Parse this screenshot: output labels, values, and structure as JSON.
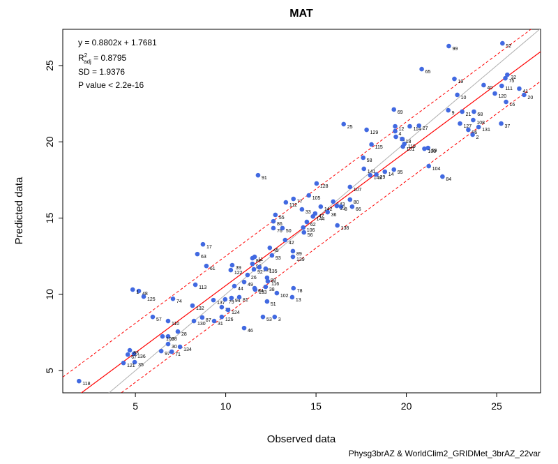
{
  "chart_data": {
    "type": "scatter",
    "title": "MAT",
    "x_label": "Observed data",
    "y_label": "Predicted data",
    "footnote": "Physg3brAZ & WorldClim2_GRIDMet_3brAZ_22var",
    "annotations": [
      "y = 0.8802x + 1.7681",
      "SD =  1.9376",
      "P value < 2.2e-16"
    ],
    "r2_label": {
      "base": "R",
      "sup": "2",
      "sub": "adj",
      "rest": " = 0.8795"
    },
    "fit": {
      "slope": 0.8802,
      "intercept": 1.7681,
      "sd": 1.9376,
      "color": "#ff0000"
    },
    "identity_color": "#b0b0b0",
    "color": "#4169e1",
    "xlim": [
      0.98,
      27.43
    ],
    "ylim": [
      3.54,
      27.38
    ],
    "xticks": [
      5,
      10,
      15,
      20,
      25
    ],
    "yticks": [
      5,
      10,
      15,
      20,
      25
    ],
    "point_labels": [
      "118",
      "35",
      "121",
      "136",
      "67",
      "83",
      "97",
      "71",
      "30",
      "134",
      "98",
      "100",
      "28",
      "110",
      "130",
      "57",
      "87",
      "31",
      "126",
      "46",
      "53",
      "3",
      "132",
      "137",
      "34",
      "79",
      "94",
      "81",
      "124",
      "133",
      "64",
      "51",
      "102",
      "13",
      "78",
      "38",
      "116",
      "88",
      "49",
      "44",
      "48",
      "1",
      "125",
      "74",
      "113",
      "61",
      "63",
      "17",
      "39",
      "122",
      "82",
      "11",
      "90",
      "109",
      "92",
      "26",
      "135",
      "45",
      "93",
      "89",
      "139",
      "76",
      "50",
      "42",
      "56",
      "106",
      "138",
      "86",
      "55",
      "112",
      "77",
      "33",
      "142",
      "47",
      "144",
      "62",
      "105",
      "128",
      "91",
      "36",
      "143",
      "8",
      "23",
      "80",
      "66",
      "107",
      "141",
      "148",
      "29",
      "58",
      "14",
      "95",
      "115",
      "129",
      "25",
      "4",
      "73",
      "12",
      "69",
      "101",
      "119",
      "18",
      "114",
      "27",
      "59",
      "103",
      "104",
      "84",
      "9",
      "10",
      "65",
      "99",
      "19",
      "21",
      "127",
      "96",
      "2",
      "68",
      "108",
      "131",
      "52",
      "75",
      "32",
      "111",
      "40",
      "120",
      "16",
      "37",
      "41",
      "20"
    ],
    "x": [
      1.88,
      4.96,
      4.34,
      4.92,
      4.58,
      4.69,
      6.43,
      7.01,
      6.81,
      7.47,
      6.81,
      6.5,
      7.35,
      6.81,
      8.24,
      5.96,
      8.7,
      9.36,
      9.78,
      11.02,
      12.06,
      12.71,
      8.16,
      9.32,
      9.78,
      9.97,
      10.32,
      10.75,
      10.13,
      11.63,
      11.6,
      12.29,
      12.83,
      13.68,
      13.75,
      12.21,
      12.33,
      12.29,
      11.02,
      10.48,
      5.19,
      4.85,
      5.46,
      7.08,
      8.32,
      8.93,
      8.43,
      8.74,
      10.36,
      10.28,
      11.48,
      11.6,
      11.48,
      11.86,
      11.56,
      11.21,
      12.21,
      12.44,
      12.56,
      13.72,
      13.72,
      12.64,
      13.14,
      13.29,
      14.33,
      14.29,
      16.18,
      12.64,
      12.75,
      13.33,
      13.75,
      14.22,
      15.26,
      14.95,
      14.83,
      14.49,
      14.6,
      15.03,
      11.79,
      15.64,
      15.95,
      16.38,
      16.15,
      16.88,
      17.0,
      16.88,
      17.65,
      18.0,
      18.34,
      17.61,
      18.81,
      19.31,
      18.07,
      17.8,
      16.53,
      19.38,
      19.42,
      19.38,
      19.31,
      19.81,
      19.89,
      19.77,
      20.19,
      20.7,
      21.2,
      21.0,
      21.24,
      22.0,
      22.32,
      22.82,
      20.85,
      22.35,
      22.66,
      23.09,
      22.97,
      23.43,
      23.67,
      23.74,
      23.7,
      24.0,
      25.32,
      25.48,
      25.59,
      25.28,
      24.28,
      24.9,
      25.52,
      25.25,
      26.25,
      26.52
    ],
    "values": [
      4.31,
      5.55,
      5.5,
      6.1,
      6.05,
      6.33,
      6.28,
      6.24,
      6.74,
      6.56,
      7.24,
      7.24,
      7.56,
      8.25,
      8.25,
      8.52,
      8.48,
      8.25,
      8.52,
      7.79,
      8.52,
      8.52,
      9.26,
      9.62,
      9.16,
      9.67,
      9.76,
      9.81,
      8.98,
      10.31,
      10.4,
      9.53,
      10.08,
      9.81,
      10.4,
      10.49,
      10.86,
      11.09,
      10.81,
      10.54,
      10.22,
      10.31,
      9.85,
      9.71,
      10.63,
      11.86,
      12.64,
      13.28,
      11.91,
      11.59,
      12.37,
      12.46,
      12.0,
      11.77,
      11.64,
      11.27,
      11.68,
      13.05,
      12.55,
      12.83,
      12.46,
      14.34,
      14.34,
      13.56,
      14.06,
      14.38,
      14.52,
      14.79,
      15.21,
      16.03,
      16.26,
      15.57,
      15.75,
      15.3,
      15.11,
      14.75,
      16.49,
      17.27,
      17.81,
      15.39,
      16.08,
      15.75,
      15.8,
      16.21,
      15.75,
      17.04,
      18.23,
      17.81,
      17.86,
      18.96,
      18.04,
      18.18,
      19.83,
      20.79,
      21.16,
      20.7,
      20.33,
      21.02,
      22.12,
      19.69,
      19.87,
      20.19,
      21.02,
      21.06,
      19.6,
      19.55,
      18.41,
      17.72,
      22.07,
      23.08,
      24.77,
      26.28,
      24.13,
      21.98,
      21.2,
      20.79,
      20.47,
      21.98,
      21.43,
      20.97,
      26.46,
      24.17,
      24.4,
      23.67,
      23.72,
      23.17,
      22.62,
      21.2,
      23.49,
      23.08
    ]
  }
}
